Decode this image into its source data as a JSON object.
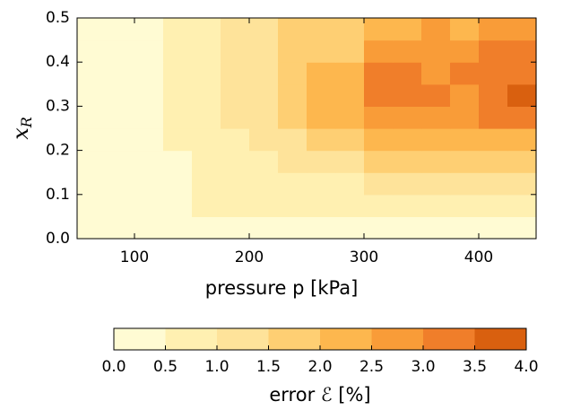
{
  "chart_data": {
    "type": "contourf",
    "xlabel": "pressure p [kPa]",
    "ylabel": {
      "base": "x",
      "subscript": "R"
    },
    "colorbar_label": "error ℰ [%]",
    "xlim": [
      50,
      450
    ],
    "xticks": [
      100,
      200,
      300,
      400
    ],
    "ylim": [
      0,
      0.5
    ],
    "yticks": [
      {
        "value": 0,
        "label": "0.0"
      },
      0.1,
      0.2,
      0.3,
      0.4,
      0.5
    ],
    "levels": [
      {
        "value": 0,
        "label": "0.0"
      },
      0.5,
      {
        "value": 1,
        "label": "1.0"
      },
      1.5,
      {
        "value": 2,
        "label": "2.0"
      },
      2.5,
      {
        "value": 3,
        "label": "3.0"
      },
      3.5,
      {
        "value": 4,
        "label": "4.0"
      }
    ],
    "colors": [
      "#fffbd3",
      "#fff0b1",
      "#fee39a",
      "#fecf73",
      "#fdb74e",
      "#f99c38",
      "#f07e2a",
      "#d9600f"
    ],
    "x": [
      62.5,
      87.5,
      112.5,
      137.5,
      162.5,
      187.5,
      212.5,
      237.5,
      262.5,
      287.5,
      312.5,
      337.5,
      362.5,
      387.5,
      412.5,
      437.5
    ],
    "y": [
      0.025,
      0.075,
      0.125,
      0.175,
      0.225,
      0.275,
      0.325,
      0.375,
      0.425,
      0.475
    ],
    "z": [
      [
        0.2,
        0.2,
        0.2,
        0.2,
        0.2,
        0.2,
        0.2,
        0.2,
        0.2,
        0.2,
        0.2,
        0.2,
        0.2,
        0.2,
        0.2,
        0.2
      ],
      [
        0.2,
        0.2,
        0.2,
        0.2,
        0.7,
        0.7,
        0.7,
        0.7,
        0.7,
        0.7,
        0.7,
        0.7,
        0.7,
        0.7,
        0.7,
        0.7
      ],
      [
        0.2,
        0.2,
        0.2,
        0.2,
        0.7,
        0.7,
        0.7,
        0.7,
        0.7,
        0.7,
        1.2,
        1.2,
        1.2,
        1.2,
        1.2,
        1.2
      ],
      [
        0.2,
        0.2,
        0.2,
        0.2,
        0.7,
        0.7,
        0.7,
        1.2,
        1.2,
        1.2,
        1.7,
        1.7,
        1.7,
        1.7,
        1.7,
        1.7
      ],
      [
        0.2,
        0.2,
        0.2,
        0.7,
        0.7,
        0.7,
        1.2,
        1.2,
        1.7,
        1.7,
        2.2,
        2.2,
        2.2,
        2.2,
        2.2,
        2.2
      ],
      [
        0.2,
        0.2,
        0.2,
        0.7,
        0.7,
        1.2,
        1.2,
        1.7,
        2.2,
        2.2,
        2.7,
        2.7,
        2.7,
        2.7,
        3.2,
        3.2
      ],
      [
        0.2,
        0.2,
        0.2,
        0.7,
        0.7,
        1.2,
        1.2,
        1.7,
        2.2,
        2.2,
        3.2,
        3.2,
        3.2,
        2.7,
        3.2,
        3.7
      ],
      [
        0.2,
        0.2,
        0.2,
        0.7,
        0.7,
        1.2,
        1.2,
        1.7,
        2.2,
        2.2,
        3.2,
        3.2,
        2.7,
        3.2,
        3.2,
        3.2
      ],
      [
        0.2,
        0.2,
        0.2,
        0.7,
        0.7,
        1.2,
        1.2,
        1.7,
        1.7,
        1.7,
        2.7,
        2.7,
        2.7,
        2.7,
        3.2,
        3.2
      ],
      [
        0.2,
        0.2,
        0.2,
        0.7,
        0.7,
        1.2,
        1.2,
        1.7,
        1.7,
        1.7,
        2.2,
        2.2,
        2.7,
        2.2,
        2.7,
        2.7
      ]
    ]
  }
}
